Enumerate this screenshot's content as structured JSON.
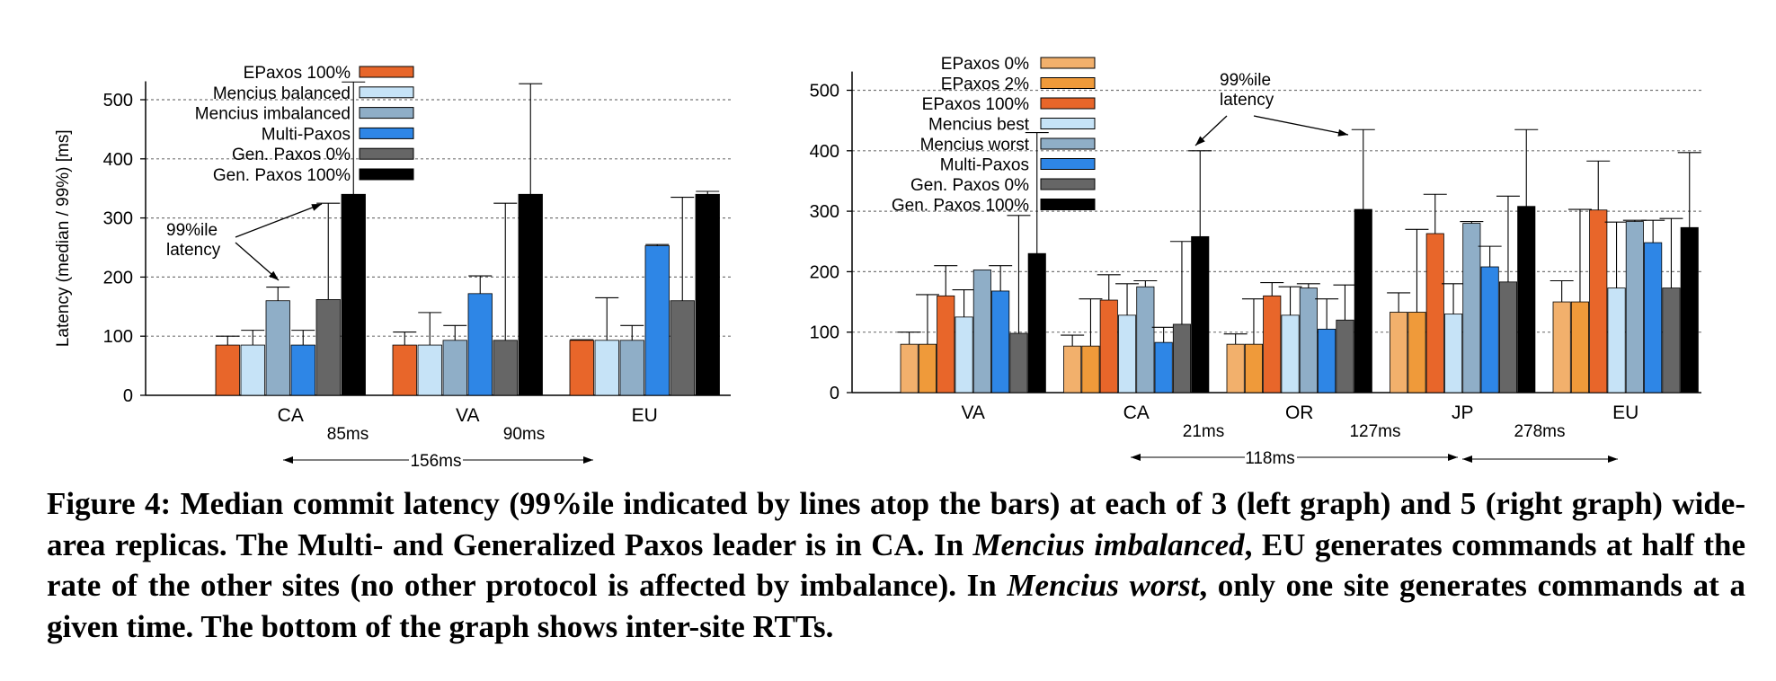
{
  "chart_data": [
    {
      "type": "bar",
      "ylabel": "Latency (median / 99%) [ms]",
      "ylim": [
        0,
        525
      ],
      "yticks": [
        0,
        100,
        200,
        300,
        400,
        500
      ],
      "grid": true,
      "categories": [
        "CA",
        "VA",
        "EU"
      ],
      "series": [
        {
          "name": "EPaxos 100%",
          "color": "#e8662a",
          "values": [
            85,
            85,
            93
          ],
          "p99": [
            100,
            107,
            94
          ]
        },
        {
          "name": "Mencius balanced",
          "color": "#c6e3f7",
          "values": [
            85,
            85,
            93
          ],
          "p99": [
            110,
            140,
            165
          ]
        },
        {
          "name": "Mencius imbalanced",
          "color": "#8faec7",
          "values": [
            160,
            93,
            93
          ],
          "p99": [
            183,
            118,
            118
          ]
        },
        {
          "name": "Multi-Paxos",
          "color": "#2e86e6",
          "values": [
            85,
            172,
            253
          ],
          "p99": [
            110,
            202,
            255
          ]
        },
        {
          "name": "Gen. Paxos 0%",
          "color": "#666666",
          "values": [
            162,
            93,
            160
          ],
          "p99": [
            325,
            325,
            335
          ]
        },
        {
          "name": "Gen. Paxos 100%",
          "color": "#000000",
          "values": [
            340,
            340,
            340
          ],
          "p99": [
            530,
            527,
            345
          ]
        }
      ],
      "annotation": {
        "text": [
          "99%ile",
          "latency"
        ]
      },
      "rtts": [
        {
          "label": "85ms",
          "span": "CA-VA"
        },
        {
          "label": "90ms",
          "span": "VA-EU"
        },
        {
          "label": "156ms",
          "span": "CA-EU"
        }
      ]
    },
    {
      "type": "bar",
      "ylabel": "",
      "ylim": [
        0,
        525
      ],
      "yticks": [
        0,
        100,
        200,
        300,
        400,
        500
      ],
      "grid": true,
      "categories": [
        "VA",
        "CA",
        "OR",
        "JP",
        "EU"
      ],
      "series": [
        {
          "name": "EPaxos 0%",
          "color": "#f2b06c",
          "values": [
            80,
            77,
            80,
            133,
            150
          ],
          "p99": [
            100,
            95,
            97,
            165,
            185
          ]
        },
        {
          "name": "EPaxos 2%",
          "color": "#ef9a3a",
          "values": [
            80,
            77,
            80,
            133,
            150
          ],
          "p99": [
            162,
            155,
            155,
            270,
            303
          ]
        },
        {
          "name": "EPaxos 100%",
          "color": "#e8662a",
          "values": [
            160,
            153,
            160,
            263,
            302
          ],
          "p99": [
            210,
            195,
            182,
            328,
            383
          ]
        },
        {
          "name": "Mencius best",
          "color": "#c6e3f7",
          "values": [
            125,
            128,
            128,
            130,
            173
          ],
          "p99": [
            170,
            180,
            175,
            180,
            282
          ]
        },
        {
          "name": "Mencius worst",
          "color": "#8faec7",
          "values": [
            203,
            175,
            173,
            280,
            283
          ],
          "p99": [
            203,
            185,
            180,
            283,
            285
          ]
        },
        {
          "name": "Multi-Paxos",
          "color": "#2e86e6",
          "values": [
            168,
            83,
            105,
            208,
            248
          ],
          "p99": [
            210,
            108,
            155,
            242,
            285
          ]
        },
        {
          "name": "Gen. Paxos 0%",
          "color": "#666666",
          "values": [
            98,
            113,
            120,
            183,
            173
          ],
          "p99": [
            293,
            250,
            178,
            325,
            288
          ]
        },
        {
          "name": "Gen. Paxos 100%",
          "color": "#000000",
          "values": [
            230,
            258,
            303,
            308,
            273
          ],
          "p99": [
            430,
            400,
            435,
            435,
            397
          ]
        }
      ],
      "annotation": {
        "text": [
          "99%ile",
          "latency"
        ]
      },
      "rtts": [
        {
          "label": "21ms",
          "span": "CA-OR"
        },
        {
          "label": "127ms",
          "span": "OR-JP"
        },
        {
          "label": "278ms",
          "span": "JP-EU"
        },
        {
          "label": "118ms",
          "span": "CA-JP"
        }
      ]
    }
  ],
  "caption": {
    "label": "Figure 4:",
    "part1": " Median commit latency (99%ile indicated by lines atop the bars) at each of 3 (left graph) and 5 (right graph) wide-area replicas.  The Multi- and Generalized Paxos leader is in CA.  In ",
    "em1": "Mencius imbalanced",
    "part2": ", EU generates commands at half the rate of the other sites (no other protocol is affected by imbalance). In ",
    "em2": "Mencius worst",
    "part3": ", only one site generates commands at a given time. The bottom of the graph shows inter-site RTTs."
  }
}
